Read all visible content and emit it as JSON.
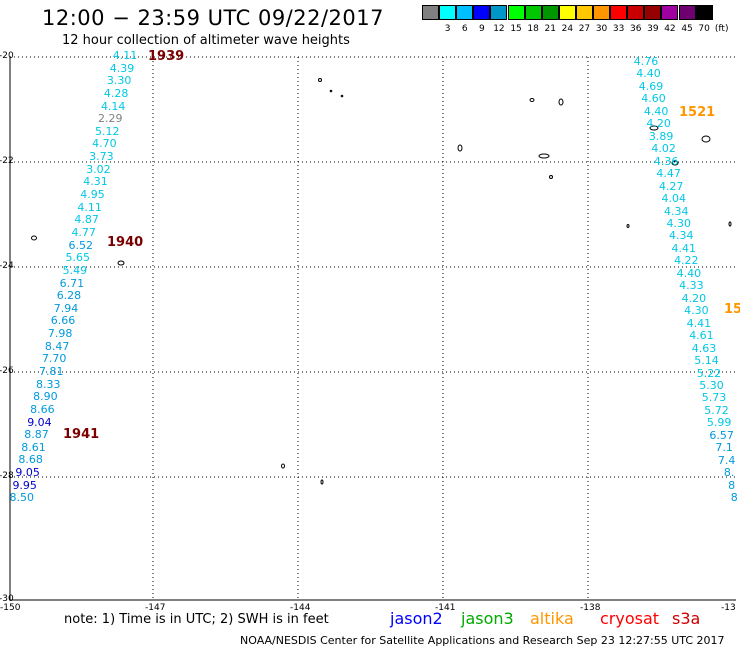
{
  "header": {
    "title": "12:00 − 23:59 UTC 09/22/2017",
    "subtitle": "12 hour collection of altimeter wave heights"
  },
  "legend": {
    "unit": "(ft)",
    "items": [
      {
        "label": "",
        "color": "#808080"
      },
      {
        "label": "3",
        "color": "#00ffff"
      },
      {
        "label": "6",
        "color": "#00bfff"
      },
      {
        "label": "9",
        "color": "#0000ff"
      },
      {
        "label": "12",
        "color": "#0096c8"
      },
      {
        "label": "15",
        "color": "#00ff00"
      },
      {
        "label": "18",
        "color": "#00c800"
      },
      {
        "label": "21",
        "color": "#009600"
      },
      {
        "label": "24",
        "color": "#ffff00"
      },
      {
        "label": "27",
        "color": "#ffc800"
      },
      {
        "label": "30",
        "color": "#ff9600"
      },
      {
        "label": "33",
        "color": "#ff0000"
      },
      {
        "label": "36",
        "color": "#c80000"
      },
      {
        "label": "39",
        "color": "#960000"
      },
      {
        "label": "42",
        "color": "#a000a0"
      },
      {
        "label": "45",
        "color": "#6e0070"
      },
      {
        "label": "70",
        "color": "#000000"
      }
    ]
  },
  "axes": {
    "lon_ticks": [
      "-150",
      "-147",
      "-144",
      "-141",
      "-138",
      "-13"
    ],
    "lat_ticks": [
      "-20",
      "-22",
      "-24",
      "-26",
      "-28",
      "-30"
    ]
  },
  "tracks": [
    {
      "id": "track-west",
      "revs": [
        {
          "label": "1939",
          "color": "#7a0000"
        },
        {
          "label": "1940",
          "color": "#7a0000"
        },
        {
          "label": "1941",
          "color": "#7a0000"
        }
      ],
      "points": [
        {
          "v": "4.11",
          "color": "#00c8e6"
        },
        {
          "v": "4.39",
          "color": "#00c8e6"
        },
        {
          "v": "3.30",
          "color": "#00c8e6"
        },
        {
          "v": "4.28",
          "color": "#00c8e6"
        },
        {
          "v": "4.14",
          "color": "#00c8e6"
        },
        {
          "v": "2.29",
          "color": "#808080"
        },
        {
          "v": "5.12",
          "color": "#00c8e6"
        },
        {
          "v": "4.70",
          "color": "#00c8e6"
        },
        {
          "v": "3.73",
          "color": "#00c8e6"
        },
        {
          "v": "3.02",
          "color": "#00c8e6"
        },
        {
          "v": "4.31",
          "color": "#00c8e6"
        },
        {
          "v": "4.95",
          "color": "#00c8e6"
        },
        {
          "v": "4.11",
          "color": "#00c8e6"
        },
        {
          "v": "4.87",
          "color": "#00c8e6"
        },
        {
          "v": "4.77",
          "color": "#00c8e6"
        },
        {
          "v": "6.52",
          "color": "#0099dd"
        },
        {
          "v": "5.65",
          "color": "#00c8e6"
        },
        {
          "v": "5.49",
          "color": "#00c8e6"
        },
        {
          "v": "6.71",
          "color": "#0099dd"
        },
        {
          "v": "6.28",
          "color": "#0099dd"
        },
        {
          "v": "7.94",
          "color": "#0099dd"
        },
        {
          "v": "6.66",
          "color": "#0099dd"
        },
        {
          "v": "7.98",
          "color": "#0099dd"
        },
        {
          "v": "8.47",
          "color": "#0099dd"
        },
        {
          "v": "7.70",
          "color": "#0099dd"
        },
        {
          "v": "7.81",
          "color": "#0099dd"
        },
        {
          "v": "8.33",
          "color": "#0099dd"
        },
        {
          "v": "8.90",
          "color": "#0099dd"
        },
        {
          "v": "8.66",
          "color": "#0099dd"
        },
        {
          "v": "9.04",
          "color": "#0000cc"
        },
        {
          "v": "8.87",
          "color": "#0099dd"
        },
        {
          "v": "8.61",
          "color": "#0099dd"
        },
        {
          "v": "8.68",
          "color": "#0099dd"
        },
        {
          "v": "9.05",
          "color": "#0000cc"
        },
        {
          "v": "9.95",
          "color": "#0000cc"
        },
        {
          "v": "8.50",
          "color": "#0099dd"
        }
      ]
    },
    {
      "id": "track-east",
      "revs": [
        {
          "label": "1521",
          "color": "#ff9600"
        },
        {
          "label": "15",
          "color": "#ff9600"
        }
      ],
      "points": [
        {
          "v": "4.76",
          "color": "#00c8e6"
        },
        {
          "v": "4.40",
          "color": "#00c8e6"
        },
        {
          "v": "4.69",
          "color": "#00c8e6"
        },
        {
          "v": "4.60",
          "color": "#00c8e6"
        },
        {
          "v": "4.40",
          "color": "#00c8e6"
        },
        {
          "v": "4.20",
          "color": "#00c8e6"
        },
        {
          "v": "3.89",
          "color": "#00c8e6"
        },
        {
          "v": "4.02",
          "color": "#00c8e6"
        },
        {
          "v": "4.36",
          "color": "#00c8e6"
        },
        {
          "v": "4.47",
          "color": "#00c8e6"
        },
        {
          "v": "4.27",
          "color": "#00c8e6"
        },
        {
          "v": "4.04",
          "color": "#00c8e6"
        },
        {
          "v": "4.34",
          "color": "#00c8e6"
        },
        {
          "v": "4.30",
          "color": "#00c8e6"
        },
        {
          "v": "4.34",
          "color": "#00c8e6"
        },
        {
          "v": "4.41",
          "color": "#00c8e6"
        },
        {
          "v": "4.22",
          "color": "#00c8e6"
        },
        {
          "v": "4.40",
          "color": "#00c8e6"
        },
        {
          "v": "4.33",
          "color": "#00c8e6"
        },
        {
          "v": "4.20",
          "color": "#00c8e6"
        },
        {
          "v": "4.30",
          "color": "#00c8e6"
        },
        {
          "v": "4.41",
          "color": "#00c8e6"
        },
        {
          "v": "4.61",
          "color": "#00c8e6"
        },
        {
          "v": "4.63",
          "color": "#00c8e6"
        },
        {
          "v": "5.14",
          "color": "#00c8e6"
        },
        {
          "v": "5.22",
          "color": "#00c8e6"
        },
        {
          "v": "5.30",
          "color": "#00c8e6"
        },
        {
          "v": "5.73",
          "color": "#00c8e6"
        },
        {
          "v": "5.72",
          "color": "#00c8e6"
        },
        {
          "v": "5.99",
          "color": "#00c8e6"
        },
        {
          "v": "6.57",
          "color": "#0099dd"
        },
        {
          "v": "7.1",
          "color": "#0099dd"
        },
        {
          "v": "7.4",
          "color": "#0099dd"
        },
        {
          "v": "8.",
          "color": "#0099dd"
        },
        {
          "v": "8",
          "color": "#0099dd"
        },
        {
          "v": "8",
          "color": "#0099dd"
        }
      ]
    }
  ],
  "footer": {
    "note": "note:  1) Time is in UTC;  2) SWH is in feet",
    "satellites": [
      {
        "name": "jason2",
        "color": "#0000ff"
      },
      {
        "name": "jason3",
        "color": "#00aa00"
      },
      {
        "name": "altika",
        "color": "#ff9600"
      },
      {
        "name": "cryosat",
        "color": "#ff0000"
      },
      {
        "name": "s3a",
        "color": "#cc0000"
      }
    ],
    "credit": "NOAA/NESDIS Center for Satellite Applications and Research     Sep 23 12:27:55 UTC 2017"
  }
}
